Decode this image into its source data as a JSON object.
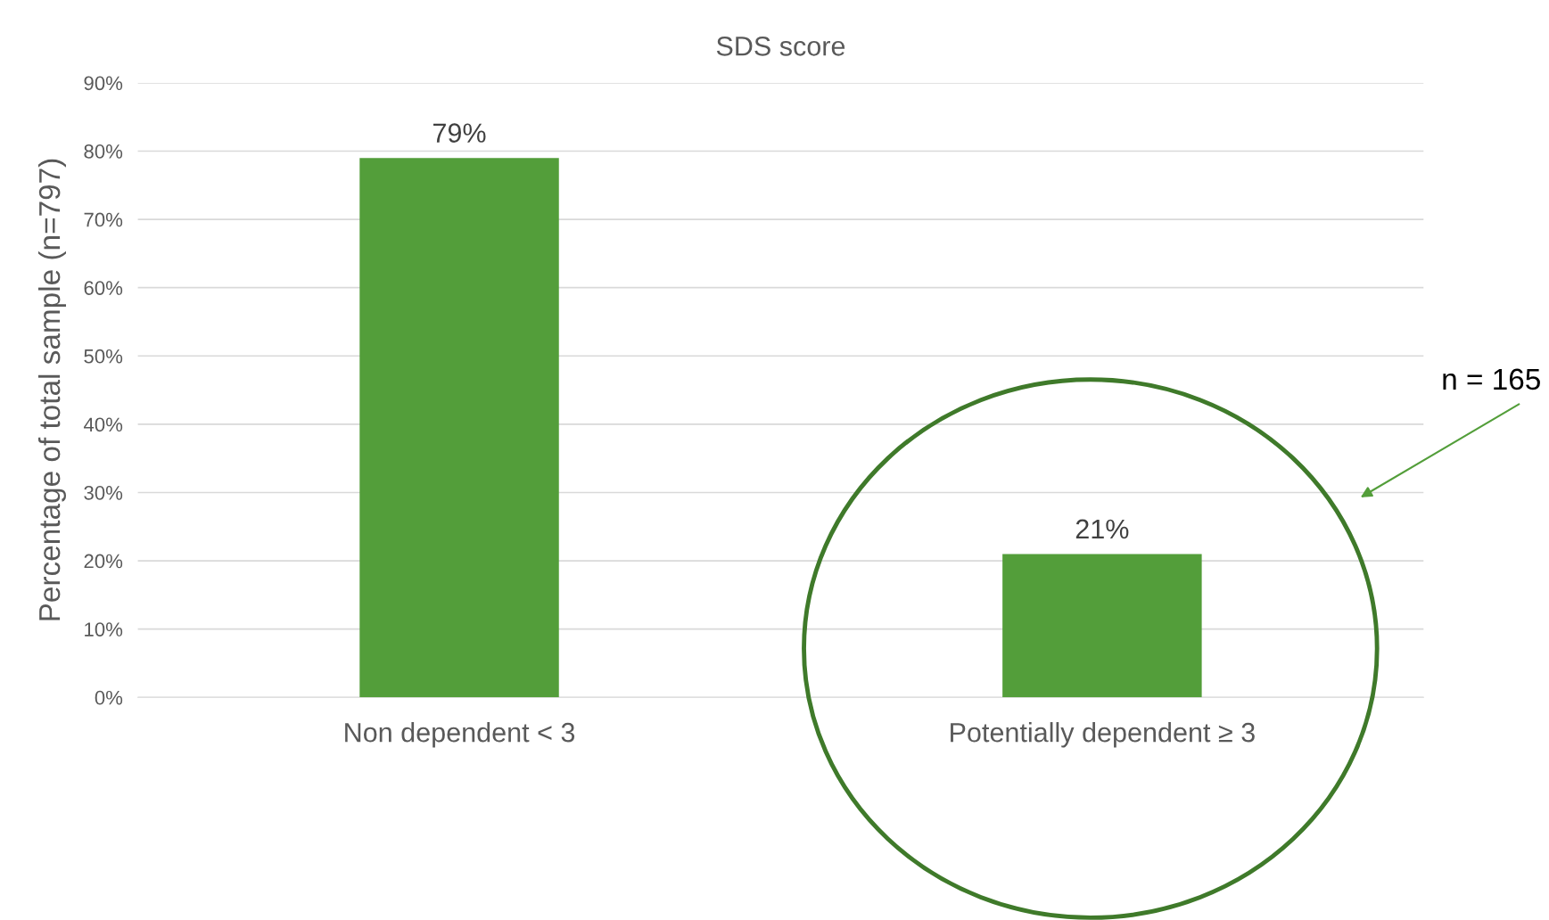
{
  "chart_data": {
    "type": "bar",
    "title": "SDS score",
    "ylabel": "Percentage of total sample (n=797)",
    "categories": [
      "Non dependent < 3",
      "Potentially dependent ≥ 3"
    ],
    "values": [
      79,
      21
    ],
    "value_labels": [
      "79%",
      "21%"
    ],
    "color": "#539e3a",
    "ylim": [
      0,
      90
    ],
    "yticks": [
      {
        "value": 0,
        "label": "0%"
      },
      {
        "value": 10,
        "label": "10%"
      },
      {
        "value": 20,
        "label": "20%"
      },
      {
        "value": 30,
        "label": "30%"
      },
      {
        "value": 40,
        "label": "40%"
      },
      {
        "value": 50,
        "label": "50%"
      },
      {
        "value": 60,
        "label": "60%"
      },
      {
        "value": 70,
        "label": "70%"
      },
      {
        "value": 80,
        "label": "80%"
      },
      {
        "value": 90,
        "label": "90%"
      }
    ],
    "grid": "y",
    "annotations": [
      "n = 165"
    ]
  }
}
